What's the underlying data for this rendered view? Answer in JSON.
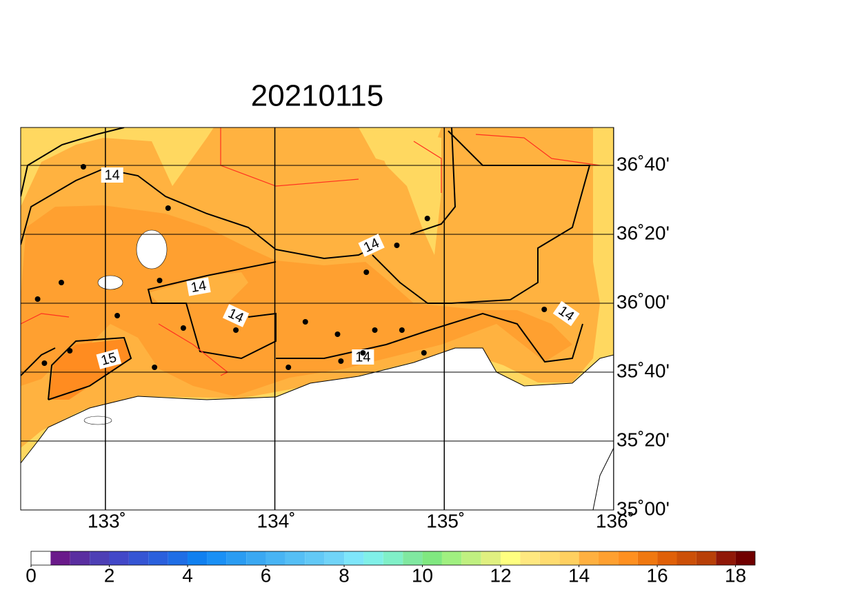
{
  "title": "20210115",
  "map": {
    "xlim": [
      132.5,
      136.0
    ],
    "ylim": [
      35.0,
      36.85
    ],
    "xticks": [
      {
        "value": 133,
        "label": "133˚"
      },
      {
        "value": 134,
        "label": "134˚"
      },
      {
        "value": 135,
        "label": "135˚"
      },
      {
        "value": 136,
        "label": "136˚"
      }
    ],
    "yticks": [
      {
        "value": 35.0,
        "label": "35˚00'"
      },
      {
        "value": 35.3333,
        "label": "35˚20'"
      },
      {
        "value": 35.6667,
        "label": "35˚40'"
      },
      {
        "value": 36.0,
        "label": "36˚00'"
      },
      {
        "value": 36.3333,
        "label": "36˚20'"
      },
      {
        "value": 36.6667,
        "label": "36˚40'"
      }
    ],
    "stations": [
      {
        "lon": 132.87,
        "lat": 36.66
      },
      {
        "lon": 133.37,
        "lat": 36.46
      },
      {
        "lon": 134.9,
        "lat": 36.41
      },
      {
        "lon": 134.72,
        "lat": 36.28
      },
      {
        "lon": 132.74,
        "lat": 36.1
      },
      {
        "lon": 133.32,
        "lat": 36.11
      },
      {
        "lon": 134.54,
        "lat": 36.15
      },
      {
        "lon": 132.6,
        "lat": 36.02
      },
      {
        "lon": 133.07,
        "lat": 35.94
      },
      {
        "lon": 133.46,
        "lat": 35.88
      },
      {
        "lon": 133.77,
        "lat": 35.87
      },
      {
        "lon": 134.18,
        "lat": 35.91
      },
      {
        "lon": 134.37,
        "lat": 35.85
      },
      {
        "lon": 134.59,
        "lat": 35.87
      },
      {
        "lon": 134.75,
        "lat": 35.87
      },
      {
        "lon": 135.59,
        "lat": 35.97
      },
      {
        "lon": 132.79,
        "lat": 35.77
      },
      {
        "lon": 132.64,
        "lat": 35.71
      },
      {
        "lon": 133.29,
        "lat": 35.69
      },
      {
        "lon": 134.08,
        "lat": 35.69
      },
      {
        "lon": 134.39,
        "lat": 35.72
      },
      {
        "lon": 134.52,
        "lat": 35.76
      },
      {
        "lon": 134.88,
        "lat": 35.76
      }
    ],
    "contour_labels": [
      {
        "level": 14,
        "lon": 133.04,
        "lat": 36.62
      },
      {
        "level": 14,
        "lon": 134.57,
        "lat": 36.28
      },
      {
        "level": 14,
        "lon": 133.55,
        "lat": 36.08
      },
      {
        "level": 14,
        "lon": 133.77,
        "lat": 35.94
      },
      {
        "level": 14,
        "lon": 135.72,
        "lat": 35.95
      },
      {
        "level": 14,
        "lon": 134.52,
        "lat": 35.74
      },
      {
        "level": 15,
        "lon": 133.02,
        "lat": 35.73
      }
    ]
  },
  "colorbar": {
    "lim": [
      0,
      18.5
    ],
    "ticks": [
      0,
      2,
      4,
      6,
      8,
      10,
      12,
      14,
      16,
      18
    ],
    "colors": [
      "#ffffff",
      "#6a1a8a",
      "#5a2ea0",
      "#4d3fb5",
      "#4248c8",
      "#3555d4",
      "#2a60dd",
      "#1f6ee6",
      "#1080f0",
      "#1a90f5",
      "#2a9cf2",
      "#3aa8f2",
      "#48b4f4",
      "#55bff5",
      "#62c9f6",
      "#70d4f8",
      "#7ee6fa",
      "#80f0e8",
      "#80f0c8",
      "#80e8a0",
      "#80e880",
      "#a0f080",
      "#c0f080",
      "#e0f080",
      "#ffff80",
      "#ffe880",
      "#ffdc70",
      "#ffd060",
      "#ffb040",
      "#ffa030",
      "#ff9020",
      "#f07810",
      "#e06008",
      "#cc5008",
      "#b84008",
      "#901808",
      "#700000"
    ]
  }
}
